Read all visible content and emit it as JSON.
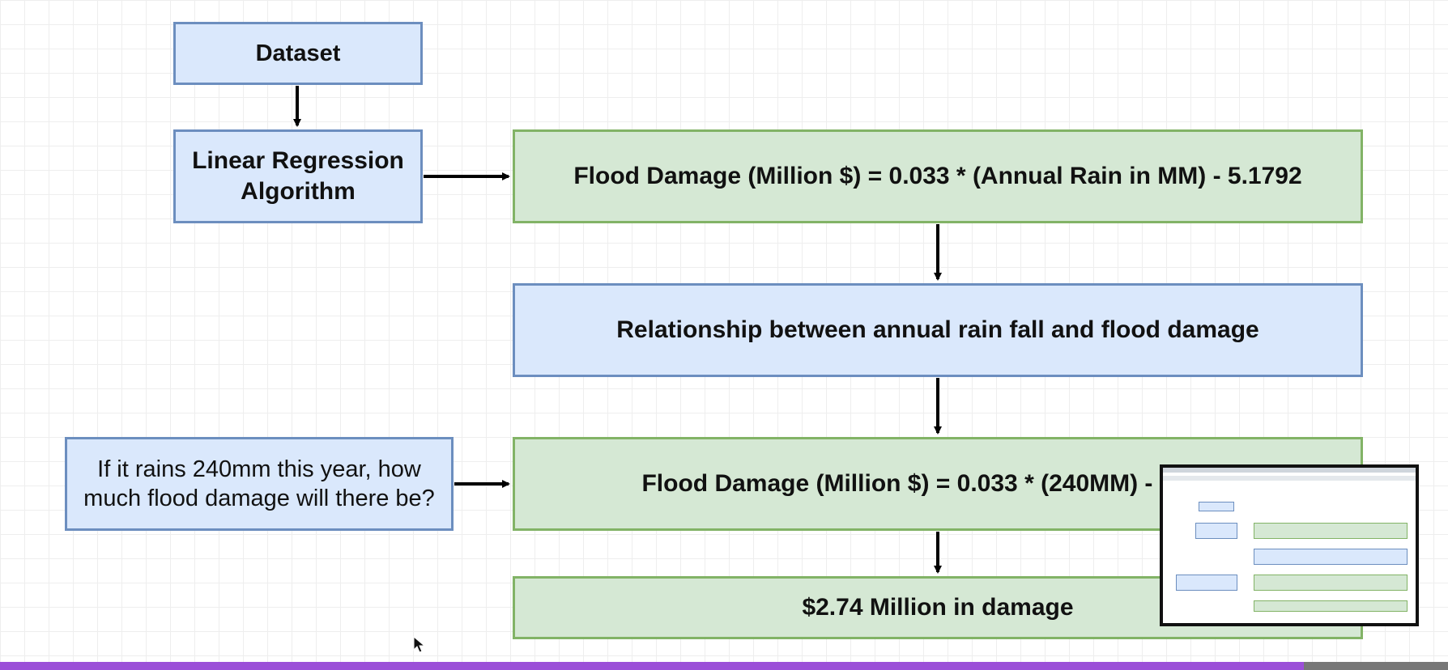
{
  "nodes": {
    "dataset": "Dataset",
    "algorithm_line1": "Linear Regression",
    "algorithm_line2": "Algorithm",
    "formula": "Flood Damage (Million $) = 0.033 * (Annual Rain in MM) - 5.1792",
    "relationship": "Relationship between annual rain fall and flood damage",
    "question": "If it rains 240mm this year, how much flood damage will there be?",
    "calculation": "Flood Damage (Million $) = 0.033 * (240MM) - 5.1792",
    "result": "$2.74 Million in damage"
  },
  "edges": [
    {
      "from": "dataset",
      "to": "algorithm"
    },
    {
      "from": "algorithm",
      "to": "formula"
    },
    {
      "from": "formula",
      "to": "relationship"
    },
    {
      "from": "relationship",
      "to": "calculation"
    },
    {
      "from": "question",
      "to": "calculation"
    },
    {
      "from": "calculation",
      "to": "result"
    }
  ],
  "colors": {
    "blue_fill": "#dae8fc",
    "blue_stroke": "#6c8ebf",
    "green_fill": "#d5e8d4",
    "green_stroke": "#82b366",
    "arrow": "#000000",
    "bottom_bar": "#9b4fd8"
  }
}
